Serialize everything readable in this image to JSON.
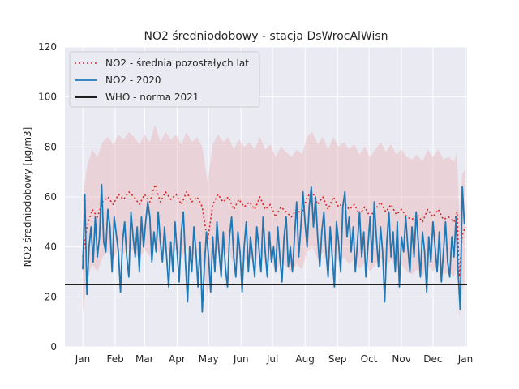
{
  "chart_data": {
    "type": "line",
    "title": "NO2 średniodobowy - stacja DsWrocAlWisn",
    "xlabel": "",
    "ylabel": "NO2 średniodobowy [μg/m3]",
    "xlim": [
      1,
      366
    ],
    "ylim": [
      0,
      120
    ],
    "yticks": [
      0,
      20,
      40,
      60,
      80,
      100,
      120
    ],
    "x_ticks": [
      {
        "label": "Jan",
        "day": 1
      },
      {
        "label": "Feb",
        "day": 32
      },
      {
        "label": "Mar",
        "day": 60
      },
      {
        "label": "Apr",
        "day": 91
      },
      {
        "label": "May",
        "day": 121
      },
      {
        "label": "Jun",
        "day": 152
      },
      {
        "label": "Jul",
        "day": 182
      },
      {
        "label": "Aug",
        "day": 213
      },
      {
        "label": "Sep",
        "day": 244
      },
      {
        "label": "Oct",
        "day": 274
      },
      {
        "label": "Nov",
        "day": 305
      },
      {
        "label": "Dec",
        "day": 335
      },
      {
        "label": "Jan",
        "day": 366
      }
    ],
    "grid": true,
    "legend_position": "upper-left",
    "background_color": "#eaeaf2",
    "series": [
      {
        "name": "NO2 - średnia pozostałych lat",
        "color": "#d62728",
        "style": "dotted",
        "x": [
          1,
          5,
          10,
          15,
          20,
          25,
          30,
          35,
          40,
          45,
          50,
          55,
          60,
          65,
          70,
          75,
          80,
          85,
          90,
          95,
          100,
          105,
          110,
          115,
          120,
          125,
          130,
          135,
          140,
          145,
          150,
          155,
          160,
          165,
          170,
          175,
          180,
          185,
          190,
          195,
          200,
          205,
          210,
          215,
          220,
          225,
          230,
          235,
          240,
          245,
          250,
          255,
          260,
          265,
          270,
          275,
          280,
          285,
          290,
          295,
          300,
          305,
          310,
          315,
          320,
          325,
          330,
          335,
          340,
          345,
          350,
          355,
          358,
          360,
          363,
          366
        ],
        "values": [
          36,
          48,
          55,
          52,
          58,
          60,
          57,
          61,
          59,
          62,
          60,
          57,
          61,
          58,
          65,
          58,
          62,
          59,
          61,
          57,
          62,
          58,
          60,
          56,
          42,
          57,
          61,
          58,
          60,
          55,
          59,
          56,
          58,
          55,
          60,
          55,
          57,
          52,
          56,
          54,
          52,
          55,
          53,
          60,
          62,
          57,
          60,
          55,
          60,
          56,
          58,
          55,
          57,
          53,
          56,
          52,
          55,
          58,
          54,
          57,
          53,
          55,
          52,
          51,
          53,
          50,
          55,
          52,
          55,
          51,
          52,
          50,
          54,
          28,
          45,
          48
        ]
      },
      {
        "name": "NO2 - 2020",
        "color": "#1f77b4",
        "style": "solid",
        "x": [
          1,
          3,
          5,
          7,
          9,
          11,
          13,
          15,
          17,
          19,
          21,
          23,
          25,
          27,
          29,
          31,
          33,
          35,
          37,
          39,
          41,
          43,
          45,
          47,
          49,
          51,
          53,
          55,
          57,
          59,
          61,
          63,
          65,
          67,
          69,
          71,
          73,
          75,
          77,
          79,
          81,
          83,
          85,
          87,
          89,
          91,
          93,
          95,
          97,
          99,
          101,
          103,
          105,
          107,
          109,
          111,
          113,
          115,
          117,
          119,
          121,
          123,
          125,
          127,
          129,
          131,
          133,
          135,
          137,
          139,
          141,
          143,
          145,
          147,
          149,
          151,
          153,
          155,
          157,
          159,
          161,
          163,
          165,
          167,
          169,
          171,
          173,
          175,
          177,
          179,
          181,
          183,
          185,
          187,
          189,
          191,
          193,
          195,
          197,
          199,
          201,
          203,
          205,
          207,
          209,
          211,
          213,
          215,
          217,
          219,
          221,
          223,
          225,
          227,
          229,
          231,
          233,
          235,
          237,
          239,
          241,
          243,
          245,
          247,
          249,
          251,
          253,
          255,
          257,
          259,
          261,
          263,
          265,
          267,
          269,
          271,
          273,
          275,
          277,
          279,
          281,
          283,
          285,
          287,
          289,
          291,
          293,
          295,
          297,
          299,
          301,
          303,
          305,
          307,
          309,
          311,
          313,
          315,
          317,
          319,
          321,
          323,
          325,
          327,
          329,
          331,
          333,
          335,
          337,
          339,
          341,
          343,
          345,
          347,
          349,
          351,
          353,
          355,
          357,
          359,
          361,
          363,
          365
        ],
        "values": [
          31,
          61,
          21,
          40,
          48,
          34,
          52,
          36,
          44,
          65,
          42,
          38,
          55,
          48,
          30,
          52,
          45,
          38,
          22,
          42,
          50,
          36,
          28,
          54,
          44,
          36,
          48,
          30,
          52,
          40,
          50,
          58,
          52,
          34,
          46,
          38,
          54,
          42,
          34,
          48,
          36,
          24,
          42,
          30,
          50,
          38,
          26,
          46,
          54,
          34,
          18,
          40,
          30,
          48,
          38,
          24,
          42,
          14,
          32,
          46,
          36,
          22,
          44,
          30,
          50,
          38,
          28,
          46,
          32,
          24,
          44,
          52,
          36,
          28,
          46,
          38,
          22,
          40,
          50,
          30,
          44,
          36,
          28,
          48,
          40,
          30,
          52,
          38,
          28,
          46,
          34,
          40,
          30,
          48,
          36,
          26,
          44,
          52,
          32,
          40,
          30,
          44,
          58,
          36,
          48,
          62,
          50,
          40,
          56,
          64,
          48,
          60,
          44,
          32,
          46,
          54,
          38,
          28,
          48,
          36,
          24,
          50,
          42,
          30,
          56,
          62,
          44,
          52,
          38,
          48,
          30,
          42,
          54,
          36,
          46,
          28,
          40,
          52,
          34,
          58,
          44,
          32,
          48,
          38,
          18,
          42,
          54,
          36,
          46,
          30,
          50,
          24,
          44,
          38,
          52,
          40,
          30,
          48,
          36,
          54,
          42,
          28,
          46,
          38,
          22,
          44,
          34,
          50,
          40,
          30,
          46,
          26,
          38,
          50,
          34,
          28,
          44,
          36,
          52,
          30,
          15,
          64,
          49
        ]
      },
      {
        "name": "WHO - norma 2021",
        "color": "#000000",
        "style": "solid",
        "constant": 25
      }
    ]
  }
}
